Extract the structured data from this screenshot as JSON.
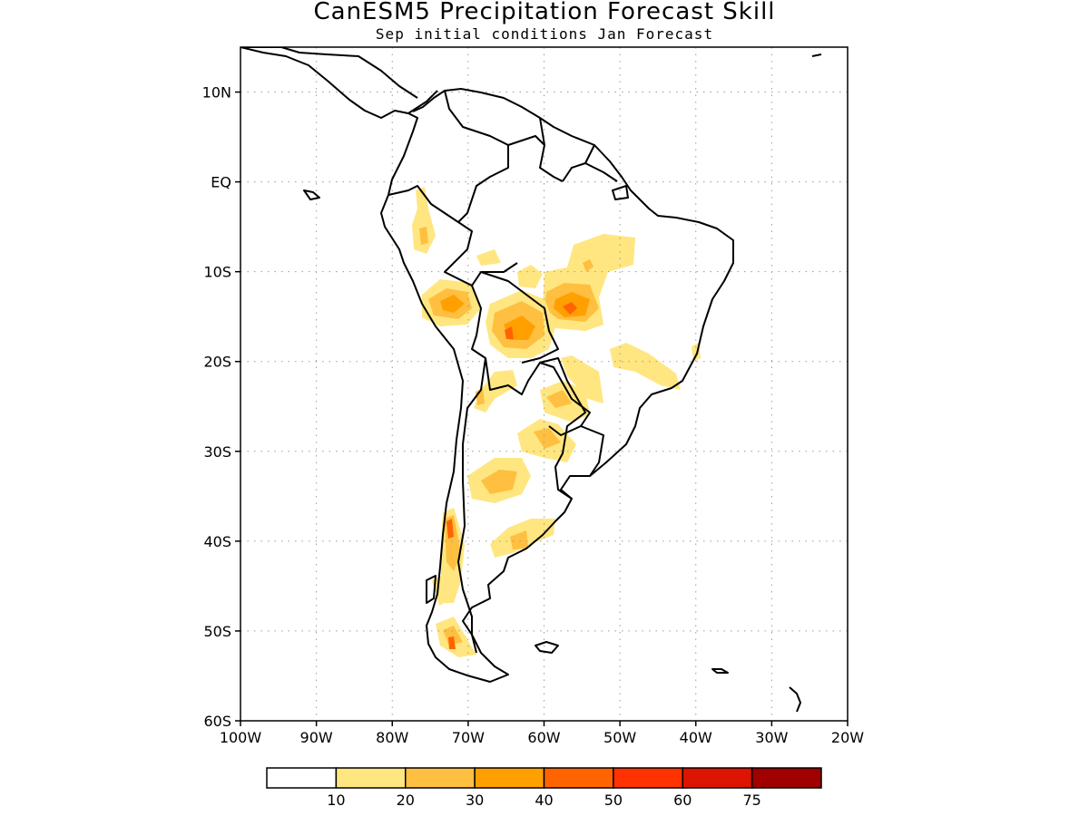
{
  "title": "CanESM5 Precipitation Forecast Skill",
  "subtitle": "Sep initial conditions  Jan Forecast",
  "map": {
    "lon_range": [
      -100,
      -20
    ],
    "lat_range": [
      -60,
      15
    ],
    "lat_ticks": [
      {
        "value": 10,
        "label": "10N"
      },
      {
        "value": 0,
        "label": "EQ"
      },
      {
        "value": -10,
        "label": "10S"
      },
      {
        "value": -20,
        "label": "20S"
      },
      {
        "value": -30,
        "label": "30S"
      },
      {
        "value": -40,
        "label": "40S"
      },
      {
        "value": -50,
        "label": "50S"
      },
      {
        "value": -60,
        "label": "60S"
      }
    ],
    "lon_ticks": [
      {
        "value": -100,
        "label": "100W"
      },
      {
        "value": -90,
        "label": "90W"
      },
      {
        "value": -80,
        "label": "80W"
      },
      {
        "value": -70,
        "label": "70W"
      },
      {
        "value": -60,
        "label": "60W"
      },
      {
        "value": -50,
        "label": "50W"
      },
      {
        "value": -40,
        "label": "40W"
      },
      {
        "value": -30,
        "label": "30W"
      },
      {
        "value": -20,
        "label": "20W"
      }
    ],
    "grid": true
  },
  "colorbar": {
    "colors": [
      "#ffffff",
      "#ffe680",
      "#ffbf40",
      "#ffa000",
      "#ff6400",
      "#ff3200",
      "#dc1400",
      "#a00000"
    ],
    "labels": [
      "10",
      "20",
      "30",
      "40",
      "50",
      "60",
      "75"
    ]
  }
}
